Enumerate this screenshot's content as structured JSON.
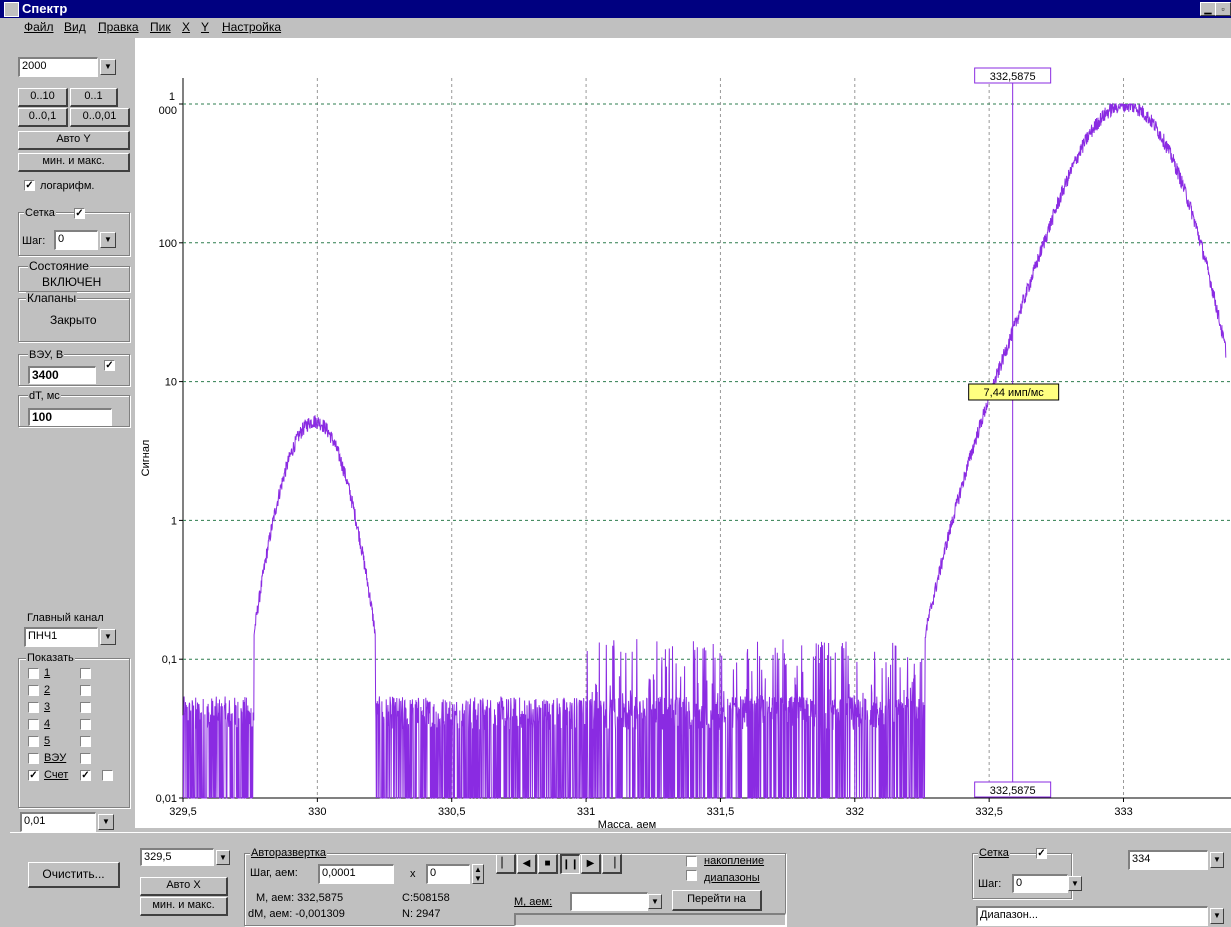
{
  "window": {
    "title": "Спектр"
  },
  "menu": [
    "Файл",
    "Вид",
    "Правка",
    "Пик",
    "X",
    "Y",
    "Настройка"
  ],
  "left_panel": {
    "y_max_value": "2000",
    "range_buttons": [
      "0..10",
      "0..1",
      "0..0,1",
      "0..0,01"
    ],
    "auto_y_label": "Авто Y",
    "minmax_label": "мин. и макс.",
    "log_label": "логарифм.",
    "log_checked": true,
    "grid_label": "Сетка",
    "grid_checked": true,
    "step_label": "Шаг:",
    "step_value": "0",
    "state_label": "Состояние",
    "state_value": "ВКЛЮЧЕН",
    "valves_label": "Клапаны",
    "valves_value": "Закрыто",
    "veu_label": "ВЭУ, В",
    "veu_value": "3400",
    "veu_checked": true,
    "dt_label": "dT, мс",
    "dt_value": "100",
    "main_channel_label": "Главный канал",
    "main_channel_value": "ПНЧ1",
    "show_label": "Показать",
    "show_items": [
      {
        "label": "1",
        "checked": false,
        "second_checked": false
      },
      {
        "label": "2",
        "checked": false,
        "second_checked": false
      },
      {
        "label": "3",
        "checked": false,
        "second_checked": false
      },
      {
        "label": "4",
        "checked": false,
        "second_checked": false
      },
      {
        "label": "5",
        "checked": false,
        "second_checked": false
      },
      {
        "label": "ВЭУ",
        "checked": false,
        "second_checked": false
      },
      {
        "label": "Счет",
        "checked": true,
        "second_checked": true
      }
    ],
    "y_min_value": "0,01"
  },
  "chart_data": {
    "type": "line",
    "xlabel": "Масса, аем",
    "ylabel": "Сигнал",
    "xlim": [
      329.5,
      333.4
    ],
    "ylim": [
      0.01,
      1000
    ],
    "y_scale": "log",
    "x_ticks": [
      "329,5",
      "330",
      "330,5",
      "331",
      "331,5",
      "332",
      "332,5",
      "333"
    ],
    "y_ticks": [
      "0,01",
      "0,1",
      "1",
      "10",
      "100",
      "1\n000"
    ],
    "grid": true,
    "line_color": "#8a2be2",
    "cursor_x": 332.5875,
    "cursor_label_top": "332,5875",
    "cursor_label_bottom": "332,5875",
    "tooltip": "7,44 имп/мс",
    "peaks": [
      {
        "center": 329.99,
        "height": 5.2
      },
      {
        "center": 333.01,
        "height": 950
      }
    ]
  },
  "bottom_panel": {
    "clear_label": "Очистить...",
    "x_min_value": "329,5",
    "auto_x_label": "Авто X",
    "minmax_label": "мин. и макс.",
    "autoscan_label": "Авторазвертка",
    "step_label": "Шаг, аем:",
    "step_value": "0,0001",
    "x_mult": "x",
    "mult_value": "0",
    "m_label": "М, аем: 332,5875",
    "dm_label": "dM, аем: -0,001309",
    "c_label": "С:508158",
    "n_label": "N: 2947",
    "m_select_label": "М, аем:",
    "m_select_value": "",
    "goto_label": "Перейти на",
    "accum_label": "накопление",
    "ranges_label": "диапазоны",
    "grid_label": "Сетка",
    "grid_checked": true,
    "grid_step_label": "Шаг:",
    "grid_step_value": "0",
    "x_max_value": "334",
    "range_value": "Диапазон..."
  }
}
